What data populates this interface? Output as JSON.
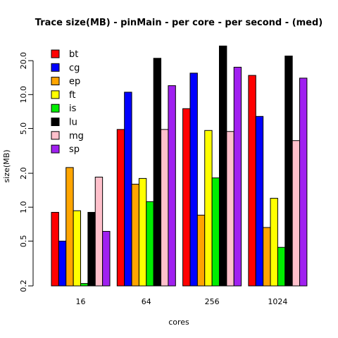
{
  "chart_data": {
    "type": "bar",
    "title": "Trace size(MB) - pinMain - per core - per second - (med)",
    "xlabel": "cores",
    "ylabel": "size(MB)",
    "y_scale": "log",
    "ylim": [
      0.2,
      30
    ],
    "yticks": [
      {
        "value": 0.2,
        "label": "0.2"
      },
      {
        "value": 0.5,
        "label": "0.5"
      },
      {
        "value": 1.0,
        "label": "1.0"
      },
      {
        "value": 2.0,
        "label": "2.0"
      },
      {
        "value": 5.0,
        "label": "5.0"
      },
      {
        "value": 10.0,
        "label": "10.0"
      },
      {
        "value": 20.0,
        "label": "20.0"
      }
    ],
    "categories": [
      "16",
      "64",
      "256",
      "1024"
    ],
    "legend_position": "top-left",
    "grid": false,
    "series": [
      {
        "name": "bt",
        "color": "#ff0000",
        "values": [
          0.9,
          4.9,
          7.5,
          14.8
        ]
      },
      {
        "name": "cg",
        "color": "#0000ff",
        "values": [
          0.5,
          10.5,
          15.5,
          6.4
        ]
      },
      {
        "name": "ep",
        "color": "#ffa500",
        "values": [
          2.25,
          1.6,
          0.85,
          0.66
        ]
      },
      {
        "name": "ft",
        "color": "#ffff00",
        "values": [
          0.93,
          1.8,
          4.8,
          1.2
        ]
      },
      {
        "name": "is",
        "color": "#00ee00",
        "values": [
          0.21,
          1.12,
          1.82,
          0.44
        ]
      },
      {
        "name": "lu",
        "color": "#000000",
        "values": [
          0.9,
          21.0,
          27.0,
          22.0
        ]
      },
      {
        "name": "mg",
        "color": "#ffc0cb",
        "values": [
          1.85,
          4.9,
          4.7,
          3.9
        ]
      },
      {
        "name": "sp",
        "color": "#a020f0",
        "values": [
          0.61,
          12.0,
          17.5,
          14.0
        ]
      }
    ]
  }
}
